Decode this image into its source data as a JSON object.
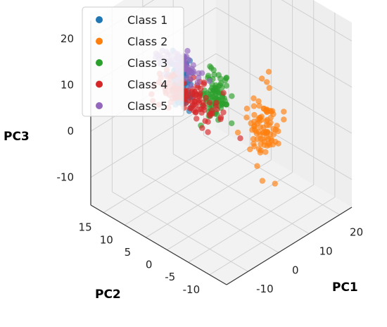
{
  "chart_data": {
    "type": "scatter",
    "projection": "3d",
    "grid": true,
    "legend_position": "top-left",
    "axes": {
      "x": {
        "label": "PC1",
        "ticks": [
          -10,
          0,
          10,
          20
        ]
      },
      "y": {
        "label": "PC2",
        "ticks": [
          -10,
          -5,
          0,
          5,
          10,
          15
        ]
      },
      "z": {
        "label": "PC3",
        "ticks": [
          -10,
          0,
          10,
          20
        ]
      }
    },
    "xlim": [
      -17,
      24
    ],
    "ylim": [
      -14,
      18
    ],
    "zlim": [
      -16,
      24
    ],
    "series": [
      {
        "name": "Class 1",
        "color": "#1f77b4",
        "n_points": 90,
        "center": [
          -7.5,
          3.5,
          14.5
        ],
        "spread": [
          1.2,
          1.0,
          3.0
        ]
      },
      {
        "name": "Class 2",
        "color": "#ff7f0e",
        "n_points": 90,
        "center": [
          9.5,
          -4.0,
          2.0
        ],
        "spread": [
          2.0,
          1.5,
          3.5
        ]
      },
      {
        "name": "Class 3",
        "color": "#2ca02c",
        "n_points": 90,
        "center": [
          0.0,
          1.0,
          9.5
        ],
        "spread": [
          1.5,
          1.2,
          2.8
        ]
      },
      {
        "name": "Class 4",
        "color": "#d62728",
        "n_points": 130,
        "center": [
          4.5,
          11.5,
          2.5
        ],
        "spread": [
          2.0,
          3.5,
          1.5
        ]
      },
      {
        "name": "Class 5",
        "color": "#9467bd",
        "n_points": 80,
        "center": [
          -3.5,
          7.0,
          15.0
        ],
        "spread": [
          1.5,
          2.5,
          1.0
        ]
      }
    ]
  }
}
